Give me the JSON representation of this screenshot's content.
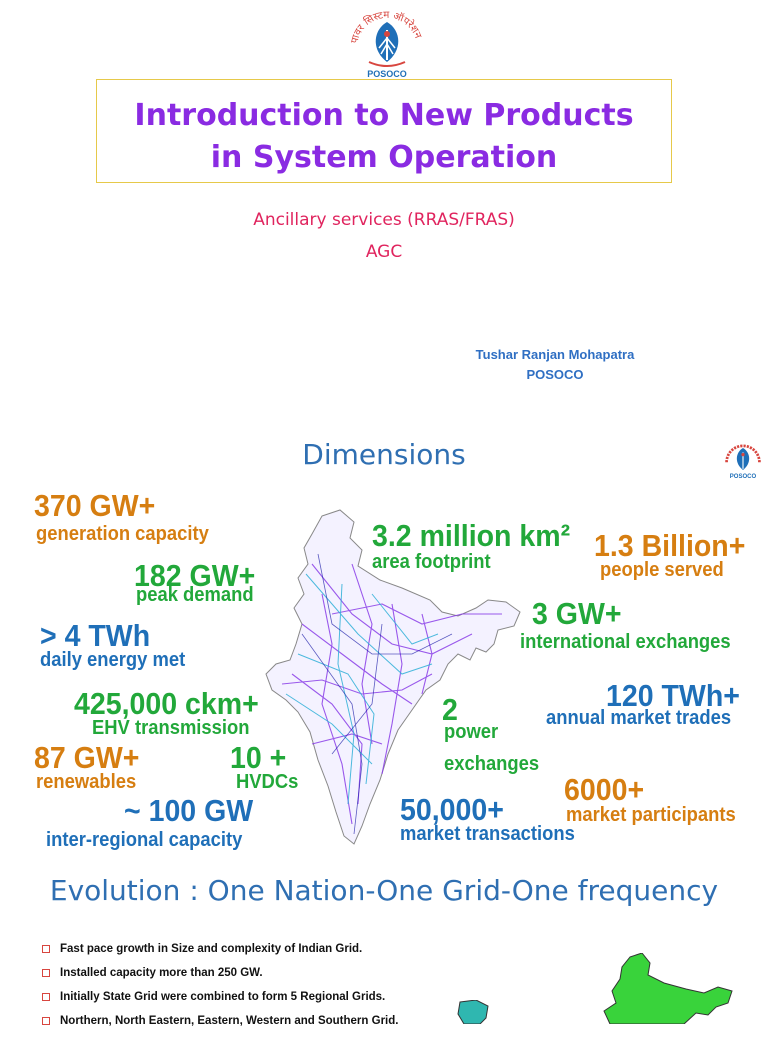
{
  "slide1": {
    "logo_text_top": "पावर सिस्टम ऑपरेशन",
    "logo_text_bottom": "POSOCO",
    "title_line1": "Introduction to New Products",
    "title_line2": "in System Operation",
    "subtitle1": "Ancillary services (RRAS/FRAS)",
    "subtitle2": "AGC",
    "author_name": "Tushar Ranjan Mohapatra",
    "author_org": "POSOCO"
  },
  "slide2": {
    "title": "Dimensions",
    "logo_text_bottom": "POSOCO",
    "stats": {
      "gen_value": "370 GW+",
      "gen_label": "generation capacity",
      "peak_value": "182 GW+",
      "peak_label": "peak demand",
      "energy_value": "> 4 TWh",
      "energy_label": "daily energy met",
      "ehv_value": "425,000 ckm+",
      "ehv_label": "EHV transmission",
      "ren_value": "87 GW+",
      "ren_label": "renewables",
      "hvdc_value": "10 +",
      "hvdc_label": "HVDCs",
      "ir_value": "~ 100 GW",
      "ir_label": "inter-regional capacity",
      "area_value": "3.2 million km²",
      "area_label": "area footprint",
      "people_value": "1.3 Billion+",
      "people_label": "people served",
      "intl_value": "3 GW+",
      "intl_label": "international exchanges",
      "mkt_value": "120 TWh+",
      "mkt_label": "annual market trades",
      "pex_value": "2",
      "pex_label1": "power",
      "pex_label2": "exchanges",
      "part_value": "6000+",
      "part_label": "market participants",
      "tx_value": "50,000+",
      "tx_label": "market transactions"
    }
  },
  "slide3": {
    "title": "Evolution : One Nation-One Grid-One frequency",
    "bullets": [
      "Fast pace growth in Size and complexity of Indian Grid.",
      "Installed capacity more than 250 GW.",
      "Initially State Grid were combined to form 5 Regional Grids.",
      "Northern, North Eastern, Eastern, Western and Southern Grid."
    ]
  },
  "colors": {
    "title_purple": "#8a2be2",
    "subtitle_pink": "#e0245e",
    "heading_blue": "#2f6fb2",
    "stat_orange": "#d67e11",
    "stat_green": "#22a83a",
    "stat_blue": "#1f6fb8"
  }
}
